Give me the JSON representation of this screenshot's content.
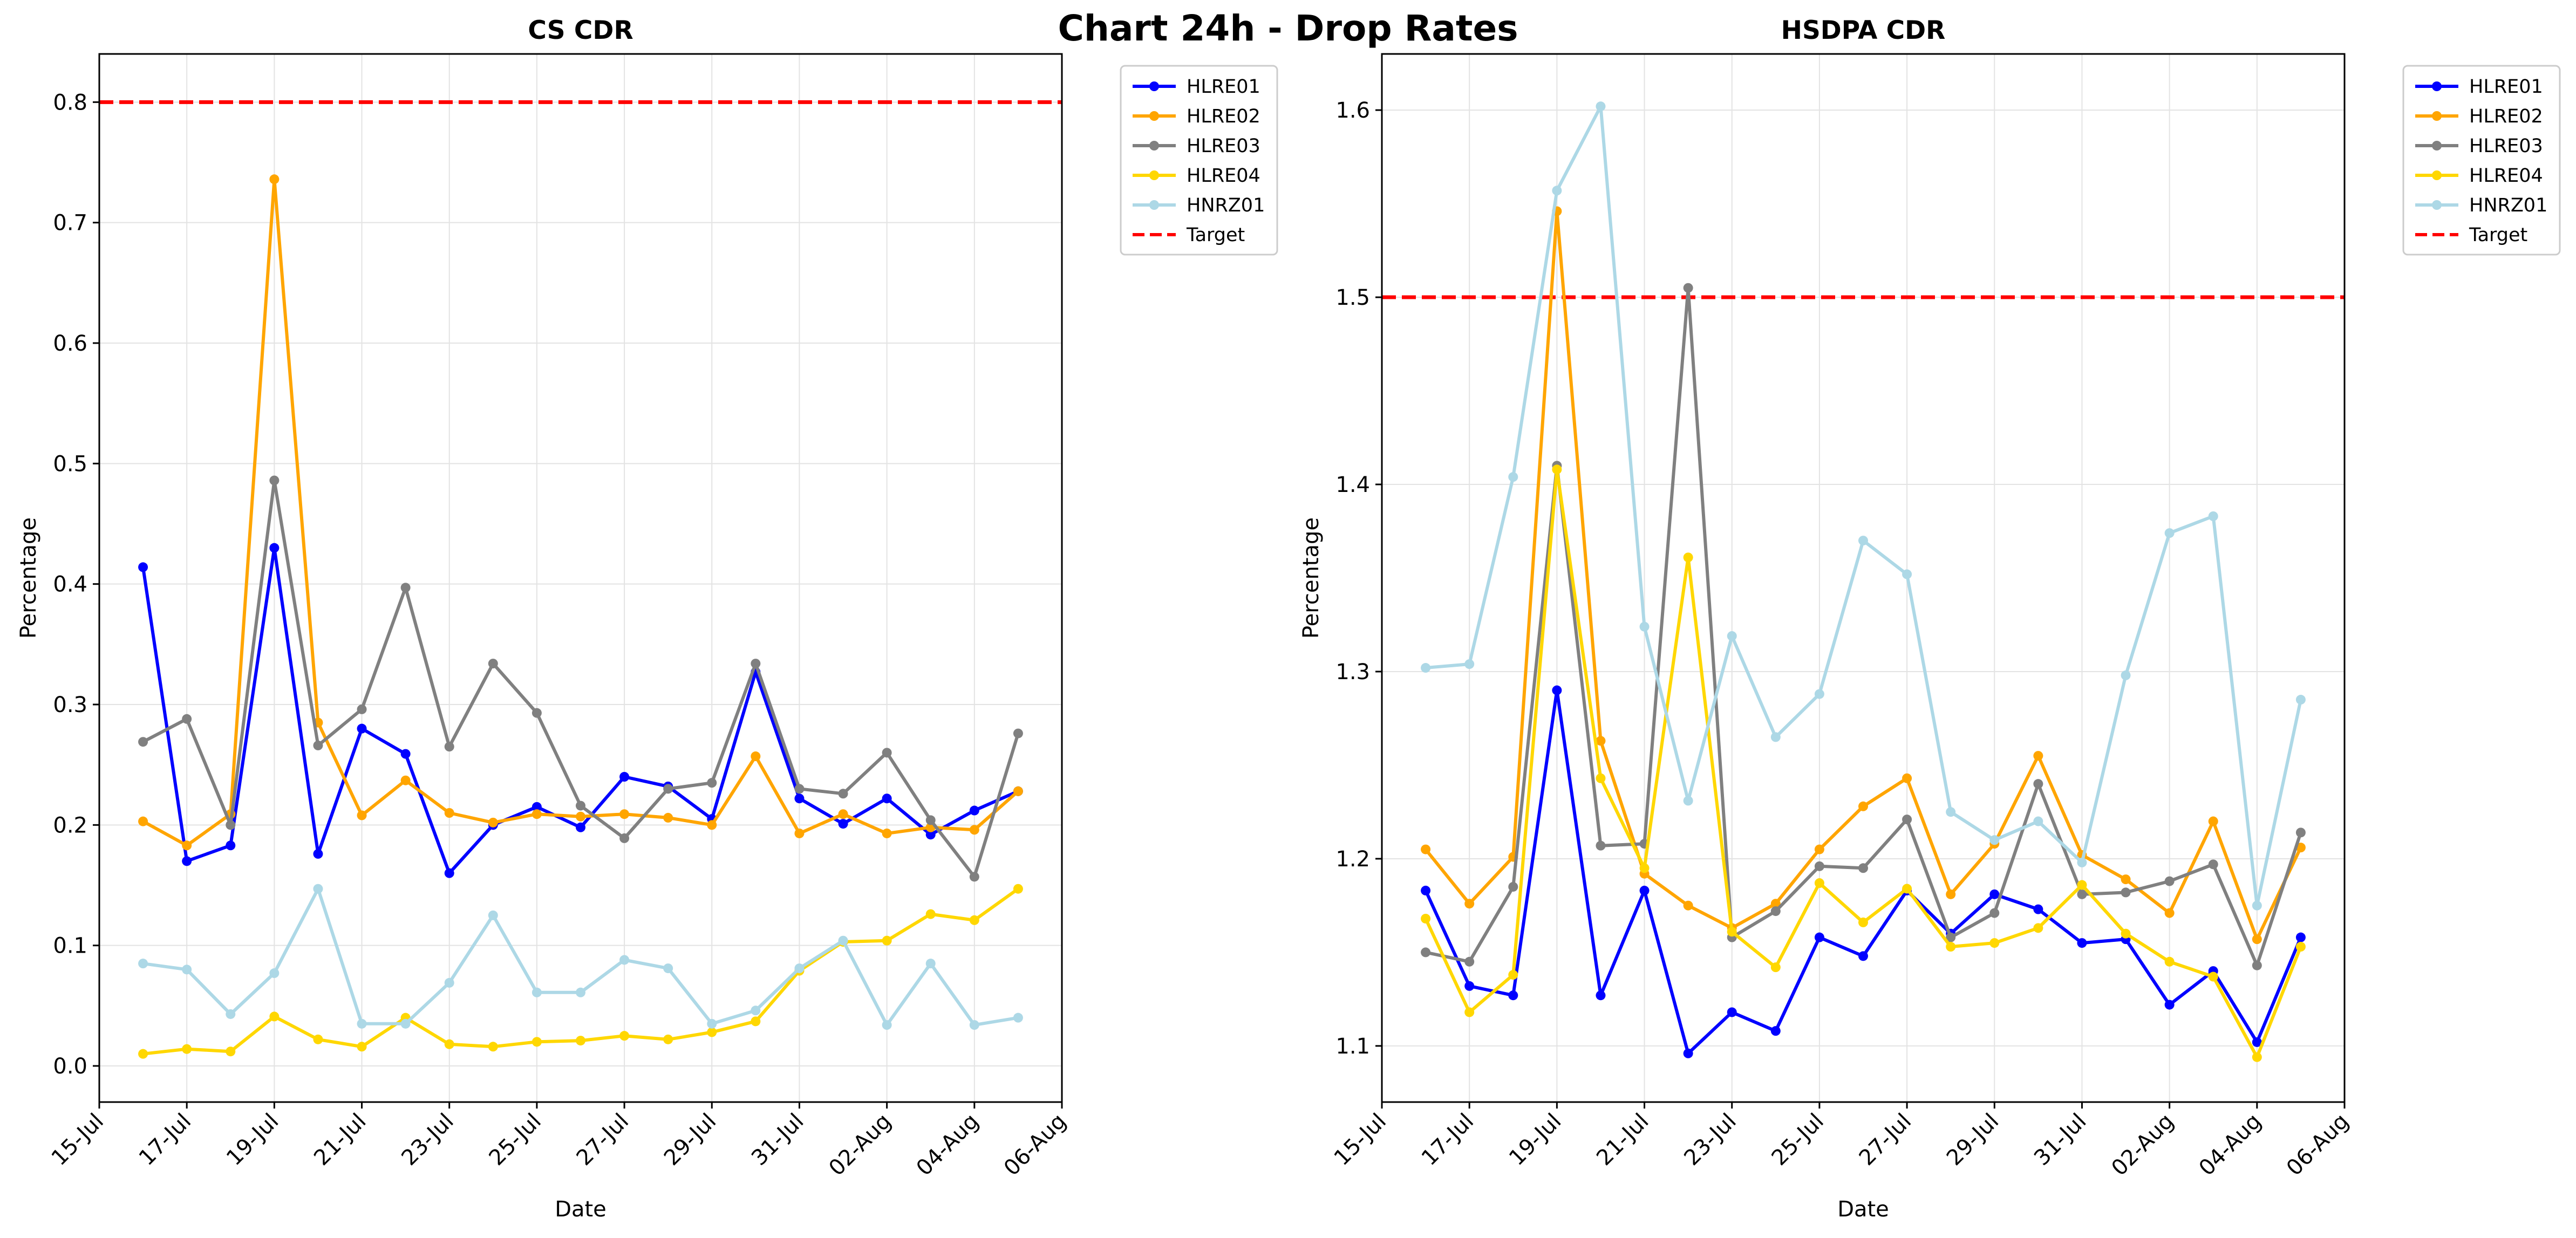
{
  "suptitle": "Chart 24h - Drop Rates",
  "colors": {
    "HLRE01": "#0000ff",
    "HLRE02": "#ffa500",
    "HLRE03": "#808080",
    "HLRE04": "#ffd700",
    "HNRZ01": "#add8e6",
    "Target": "#ff0000"
  },
  "chart_data": [
    {
      "type": "line",
      "title": "CS CDR",
      "xlabel": "Date",
      "ylabel": "Percentage",
      "x": [
        "16-Jul",
        "17-Jul",
        "18-Jul",
        "19-Jul",
        "20-Jul",
        "21-Jul",
        "22-Jul",
        "23-Jul",
        "24-Jul",
        "25-Jul",
        "26-Jul",
        "27-Jul",
        "28-Jul",
        "29-Jul",
        "30-Jul",
        "31-Jul",
        "01-Aug",
        "02-Aug",
        "03-Aug",
        "04-Aug",
        "05-Aug"
      ],
      "xticks": [
        "15-Jul",
        "17-Jul",
        "19-Jul",
        "21-Jul",
        "23-Jul",
        "25-Jul",
        "27-Jul",
        "29-Jul",
        "31-Jul",
        "02-Aug",
        "04-Aug",
        "06-Aug"
      ],
      "xlim": [
        "15-Jul",
        "06-Aug"
      ],
      "ylim": [
        -0.03,
        0.84
      ],
      "yticks": [
        "0.0",
        "0.1",
        "0.2",
        "0.3",
        "0.4",
        "0.5",
        "0.6",
        "0.7",
        "0.8"
      ],
      "grid": true,
      "legend_position": "outside-top-right",
      "target": {
        "name": "Target",
        "value": 0.8
      },
      "series": [
        {
          "name": "HLRE01",
          "values": [
            0.414,
            0.17,
            0.183,
            0.43,
            0.176,
            0.28,
            0.259,
            0.16,
            0.2,
            0.215,
            0.198,
            0.24,
            0.232,
            0.205,
            0.327,
            0.222,
            0.201,
            0.222,
            0.192,
            0.212,
            0.228
          ]
        },
        {
          "name": "HLRE02",
          "values": [
            0.203,
            0.183,
            0.209,
            0.736,
            0.285,
            0.208,
            0.237,
            0.21,
            0.202,
            0.209,
            0.207,
            0.209,
            0.206,
            0.2,
            0.257,
            0.193,
            0.209,
            0.193,
            0.198,
            0.196,
            0.228
          ]
        },
        {
          "name": "HLRE03",
          "values": [
            0.269,
            0.288,
            0.2,
            0.486,
            0.266,
            0.296,
            0.397,
            0.265,
            0.334,
            0.293,
            0.216,
            0.189,
            0.23,
            0.235,
            0.334,
            0.23,
            0.226,
            0.26,
            0.204,
            0.157,
            0.276
          ]
        },
        {
          "name": "HLRE04",
          "values": [
            0.01,
            0.014,
            0.012,
            0.041,
            0.022,
            0.016,
            0.04,
            0.018,
            0.016,
            0.02,
            0.021,
            0.025,
            0.022,
            0.028,
            0.037,
            0.079,
            0.103,
            0.104,
            0.126,
            0.121,
            0.147
          ]
        },
        {
          "name": "HNRZ01",
          "values": [
            0.085,
            0.08,
            0.043,
            0.077,
            0.147,
            0.035,
            0.035,
            0.069,
            0.125,
            0.061,
            0.061,
            0.088,
            0.081,
            0.035,
            0.046,
            0.081,
            0.104,
            0.034,
            0.085,
            0.034,
            0.04
          ]
        }
      ]
    },
    {
      "type": "line",
      "title": "HSDPA CDR",
      "xlabel": "Date",
      "ylabel": "Percentage",
      "x": [
        "16-Jul",
        "17-Jul",
        "18-Jul",
        "19-Jul",
        "20-Jul",
        "21-Jul",
        "22-Jul",
        "23-Jul",
        "24-Jul",
        "25-Jul",
        "26-Jul",
        "27-Jul",
        "28-Jul",
        "29-Jul",
        "30-Jul",
        "31-Jul",
        "01-Aug",
        "02-Aug",
        "03-Aug",
        "04-Aug",
        "05-Aug"
      ],
      "xticks": [
        "15-Jul",
        "17-Jul",
        "19-Jul",
        "21-Jul",
        "23-Jul",
        "25-Jul",
        "27-Jul",
        "29-Jul",
        "31-Jul",
        "02-Aug",
        "04-Aug",
        "06-Aug"
      ],
      "xlim": [
        "15-Jul",
        "06-Aug"
      ],
      "ylim": [
        1.07,
        1.63
      ],
      "yticks": [
        "1.1",
        "1.2",
        "1.3",
        "1.4",
        "1.5",
        "1.6"
      ],
      "grid": true,
      "legend_position": "outside-top-right",
      "target": {
        "name": "Target",
        "value": 1.5
      },
      "series": [
        {
          "name": "HLRE01",
          "values": [
            1.183,
            1.132,
            1.127,
            1.29,
            1.127,
            1.183,
            1.096,
            1.118,
            1.108,
            1.158,
            1.148,
            1.183,
            1.16,
            1.181,
            1.173,
            1.155,
            1.157,
            1.122,
            1.14,
            1.102,
            1.158
          ]
        },
        {
          "name": "HLRE02",
          "values": [
            1.205,
            1.176,
            1.201,
            1.546,
            1.263,
            1.192,
            1.175,
            1.163,
            1.176,
            1.205,
            1.228,
            1.243,
            1.181,
            1.208,
            1.255,
            1.202,
            1.189,
            1.171,
            1.22,
            1.157,
            1.206
          ]
        },
        {
          "name": "HLRE03",
          "values": [
            1.15,
            1.145,
            1.185,
            1.41,
            1.207,
            1.208,
            1.505,
            1.158,
            1.172,
            1.196,
            1.195,
            1.221,
            1.158,
            1.171,
            1.24,
            1.181,
            1.182,
            1.188,
            1.197,
            1.143,
            1.214
          ]
        },
        {
          "name": "HLRE04",
          "values": [
            1.168,
            1.118,
            1.138,
            1.408,
            1.243,
            1.195,
            1.361,
            1.161,
            1.142,
            1.187,
            1.166,
            1.184,
            1.153,
            1.155,
            1.163,
            1.186,
            1.16,
            1.145,
            1.137,
            1.094,
            1.153
          ]
        },
        {
          "name": "HNRZ01",
          "values": [
            1.302,
            1.304,
            1.404,
            1.557,
            1.602,
            1.324,
            1.231,
            1.319,
            1.265,
            1.288,
            1.37,
            1.352,
            1.225,
            1.21,
            1.22,
            1.198,
            1.298,
            1.374,
            1.383,
            1.175,
            1.285
          ]
        }
      ]
    }
  ]
}
